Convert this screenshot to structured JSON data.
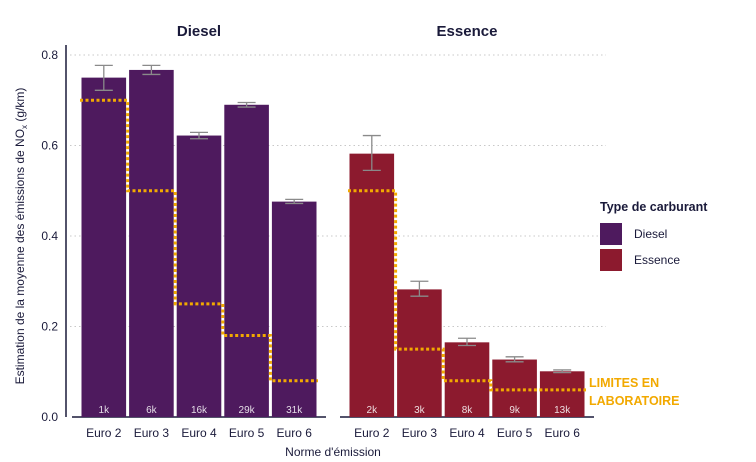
{
  "chart_data": {
    "type": "bar",
    "ylabel_prefix": "Estimation de la moyenne des émissions de NO",
    "ylabel_sub": "x",
    "ylabel_suffix": " (g/km)",
    "xlabel": "Norme d'émission",
    "ylim": [
      0,
      0.8
    ],
    "yticks": [
      "0.0",
      "0.2",
      "0.4",
      "0.6",
      "0.8"
    ],
    "grid": "horizontal dotted",
    "categories": [
      "Euro 2",
      "Euro 3",
      "Euro 4",
      "Euro 5",
      "Euro 6"
    ],
    "panels": [
      {
        "title": "Diesel",
        "series": "Diesel",
        "values": [
          0.75,
          0.767,
          0.622,
          0.69,
          0.476
        ],
        "errors": [
          [
            0.722,
            0.777
          ],
          [
            0.757,
            0.777
          ],
          [
            0.615,
            0.629
          ],
          [
            0.685,
            0.695
          ],
          [
            0.472,
            0.481
          ]
        ],
        "counts": [
          "1k",
          "6k",
          "16k",
          "29k",
          "31k"
        ],
        "limits": [
          0.7,
          0.5,
          0.25,
          0.18,
          0.08
        ]
      },
      {
        "title": "Essence",
        "series": "Essence",
        "values": [
          0.582,
          0.282,
          0.165,
          0.127,
          0.101
        ],
        "errors": [
          [
            0.545,
            0.622
          ],
          [
            0.267,
            0.3
          ],
          [
            0.158,
            0.174
          ],
          [
            0.122,
            0.133
          ],
          [
            0.098,
            0.104
          ]
        ],
        "counts": [
          "2k",
          "3k",
          "8k",
          "9k",
          "13k"
        ],
        "limits": [
          0.5,
          0.15,
          0.08,
          0.06,
          0.06
        ]
      }
    ],
    "legend": {
      "title": "Type de carburant",
      "position": "right",
      "items": [
        {
          "label": "Diesel",
          "color": "#4e1a5e"
        },
        {
          "label": "Essence",
          "color": "#8c1a2e"
        }
      ]
    },
    "annotation": [
      "LIMITES EN",
      "LABORATOIRE"
    ],
    "colors": {
      "diesel": "#4e1a5e",
      "essence": "#8c1a2e",
      "limit": "#f2a900",
      "error": "#8a8a8a",
      "grid": "#c8c8c8",
      "axis": "#1a1a3a"
    }
  }
}
